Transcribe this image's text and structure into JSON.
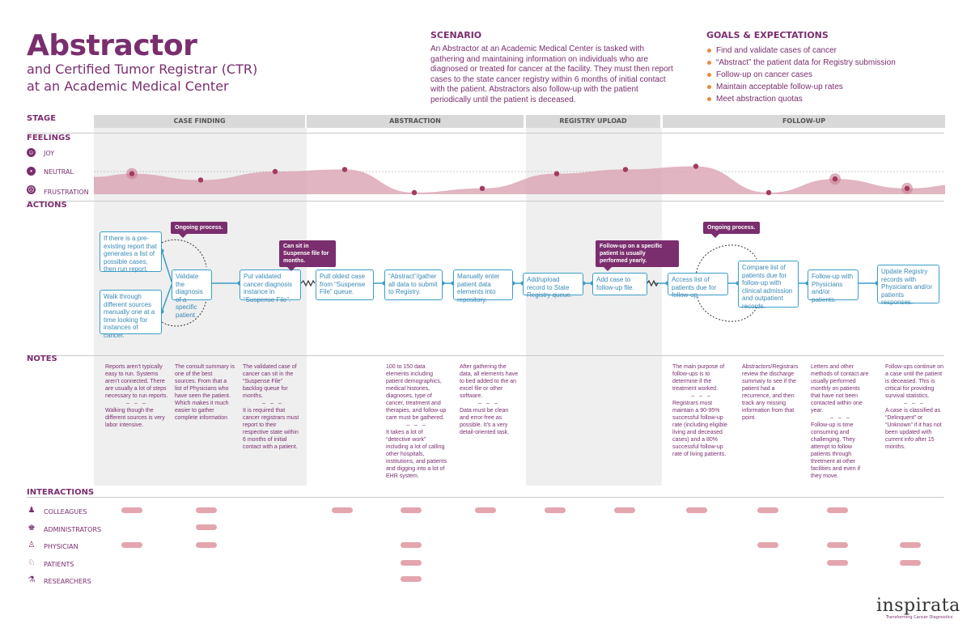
{
  "header": {
    "title": "Abstractor",
    "subtitle": "and Certified Tumor Registrar (CTR) at an Academic Medical Center"
  },
  "scenario": {
    "label": "SCENARIO",
    "text": "An Abstractor at an Academic Medical Center is tasked with gathering and maintaining information on individuals who are diagnosed or treated for cancer at the facility. They must then report cases to the state cancer registry within 6 months of initial contact with the patient. Abstractors also follow-up with the patient periodically until the patient is deceased."
  },
  "goals": {
    "label": "GOALS & EXPECTATIONS",
    "items": [
      "Find and validate cases of cancer",
      "“Abstract” the patient data for Registry submission",
      "Follow-up on cancer cases",
      "Maintain acceptable follow-up rates",
      "Meet abstraction quotas"
    ]
  },
  "sections": {
    "stage": "STAGE",
    "feelings": "FEELINGS",
    "actions": "ACTIONS",
    "notes": "NOTES",
    "interactions": "INTERACTIONS"
  },
  "stages": [
    "CASE FINDING",
    "ABSTRACTION",
    "REGISTRY UPLOAD",
    "FOLLOW-UP"
  ],
  "feelings": {
    "levels": [
      "JOY",
      "NEUTRAL",
      "FRUSTRATION"
    ],
    "icons": [
      "smile-icon",
      "neutral-face-icon",
      "frown-icon"
    ],
    "points": [
      {
        "stage": "CASE FINDING",
        "value": -0.1,
        "highlight": true
      },
      {
        "stage": "CASE FINDING",
        "value": -0.4,
        "highlight": false
      },
      {
        "stage": "CASE FINDING",
        "value": 0.0,
        "highlight": false
      },
      {
        "stage": "ABSTRACTION",
        "value": 0.1,
        "highlight": false
      },
      {
        "stage": "ABSTRACTION",
        "value": -1.0,
        "highlight": false
      },
      {
        "stage": "ABSTRACTION",
        "value": -0.8,
        "highlight": false
      },
      {
        "stage": "REGISTRY UPLOAD",
        "value": -0.1,
        "highlight": false
      },
      {
        "stage": "REGISTRY UPLOAD",
        "value": 0.1,
        "highlight": false
      },
      {
        "stage": "FOLLOW-UP",
        "value": 0.25,
        "highlight": false
      },
      {
        "stage": "FOLLOW-UP",
        "value": -1.0,
        "highlight": false
      },
      {
        "stage": "FOLLOW-UP",
        "value": -0.35,
        "highlight": true
      },
      {
        "stage": "FOLLOW-UP",
        "value": -0.8,
        "highlight": true
      }
    ]
  },
  "actions": {
    "a1": "If there is a pre-existing report that generates a list of possible cases, then run report.",
    "a2": "Walk through different sources manually one at a time looking for instances of cancer.",
    "a3": "Validate the diagnosis of a specific patient.",
    "a4": "Put validated cancer diagnosis instance in “Suspense File”.",
    "a5": "Pull oldest case from “Suspense File” queue.",
    "a6": "“Abstract”/gather all data to submit to Registry.",
    "a7": "Manually enter patient data elements into repository.",
    "a8": "Add/upload record to State Registry queue.",
    "a9": "Add case to follow-up file.",
    "a10": "Access list of patients due for follow-up.",
    "a11": "Compare list of patients due for follow-up with clinical admission and outpatient records.",
    "a12": "Follow-up with Physicians and/or patients.",
    "a13": "Update Registry records with Physicians and/or patients responses."
  },
  "callouts": {
    "c1": "Ongoing process.",
    "c2": "Can sit in Suspense file for months.",
    "c3": "Follow-up on a specific patient is usually performed yearly.",
    "c4": "Ongoing process."
  },
  "notes": {
    "n1a": "Reports aren’t typically easy to run. Systems aren’t connected. There are usually a lot of steps necessary to run reports.",
    "n1b": "Walking though the different sources is very labor intensive.",
    "n2a": "The consult summary is one of the best sources. From that a list of Physicians who have seen the patient. Which makes it much easier to gather complete information",
    "n3a": "The validated case of cancer can sit in the “Suspense File” backlog queue for months.",
    "n3b": "It is required that cancer registrars must report to their respective state within 6 months of initial contact with a patient.",
    "n4a": "100 to 150 data elements including patient demographics, medical histories, diagnoses, type of cancer, treatment and therapies, and follow-up care must be gathered.",
    "n4b": "It takes a lot of “detective work” including a lot of calling other hospitals, institutions, and patients and digging into a lot of EHR system.",
    "n5a": "After gathering the data, all elements have to bed added to the an excel file or other software.",
    "n5b": "Data must be clean and error-free as possible. It’s a very detail-oriented task.",
    "n6a": "The main purpose of follow-ups is to determine if the treatment worked.",
    "n6b": "Registrars must maintain a 90-95% successful follow-up rate (including eligible living and deceased cases) and a 80% successful follow-up rate of living patients.",
    "n7a": "Abstractors/Registrars review the discharge summary to see if the patient had a recurrence, and then track any missing information from that point.",
    "n8a": "Letters and other methods of contact are usually performed monthly on patients that have not been contacted within one year.",
    "n8b": "Follow-up is time consuming and challenging. They attempt to follow patients through thretment at other facilities and even if they move.",
    "n9a": "Follow-ups continue on a case until the patient is deceased. This is critical for providing survival statistics.",
    "n9b": "A case is classified as “Delinquent” or “Unknown” if it has not been updated with current info after 15 months."
  },
  "interactions": {
    "rows": [
      {
        "label": "COLLEAGUES",
        "icon": "people-group-icon",
        "columns": [
          1,
          2,
          4,
          5,
          6,
          7,
          8,
          9,
          10,
          11
        ]
      },
      {
        "label": "ADMINISTRATORS",
        "icon": "administrator-icon",
        "columns": [
          2
        ]
      },
      {
        "label": "PHYSICIAN",
        "icon": "physician-icon",
        "columns": [
          1,
          2,
          5,
          10,
          11,
          12
        ]
      },
      {
        "label": "PATIENTS",
        "icon": "patient-icon",
        "columns": [
          5,
          11,
          12
        ]
      },
      {
        "label": "RESEARCHERS",
        "icon": "researcher-icon",
        "columns": [
          5
        ]
      }
    ]
  },
  "brand": {
    "logo": "inspirata",
    "tagline": "Transforming Cancer Diagnostics",
    "accent": "#7a2e6e",
    "action_blue": "#3a9ec9",
    "bullet_orange": "#e88a3a",
    "wave_fill": "#d9a3b2"
  }
}
